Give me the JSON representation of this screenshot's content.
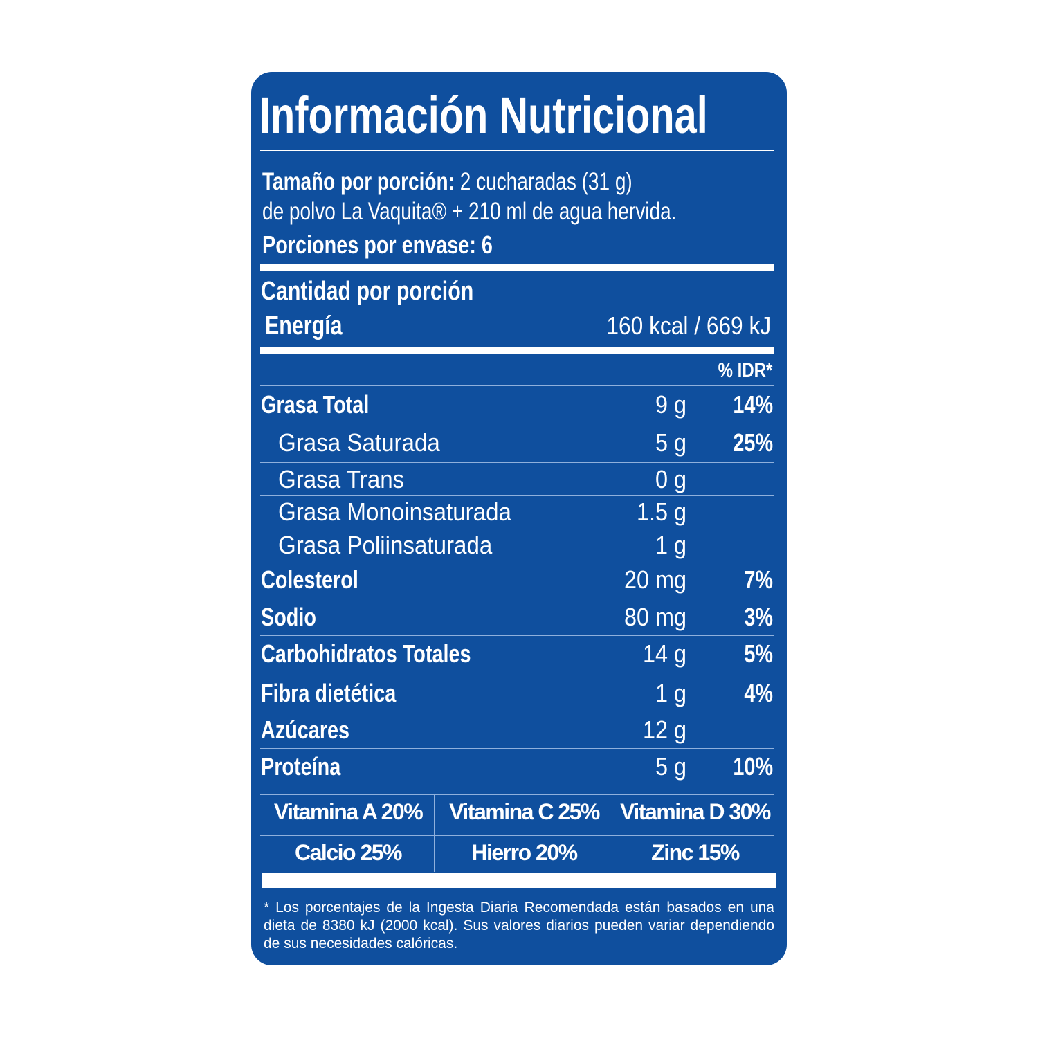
{
  "title": "Información Nutricional",
  "serving": {
    "size_label": "Tamaño por porción:",
    "size_value": "2 cucharadas (31 g)",
    "size_line2": "de polvo La Vaquita® + 210 ml de agua hervida.",
    "servings_per_container": "Porciones por envase: 6"
  },
  "amount_per_serving": "Cantidad por porción",
  "energy": {
    "label": "Energía",
    "value": "160 kcal / 669 kJ"
  },
  "idr_header": "% IDR*",
  "nutrients": [
    {
      "label": "Grasa Total",
      "amount": "9 g",
      "pct": "14%"
    },
    {
      "label": "Grasa Saturada",
      "amount": "5 g",
      "pct": "25%"
    },
    {
      "label": "Grasa Trans",
      "amount": "0 g",
      "pct": ""
    },
    {
      "label": "Grasa Monoinsaturada",
      "amount": "1.5 g",
      "pct": ""
    },
    {
      "label": "Grasa Poliinsaturada",
      "amount": "1 g",
      "pct": ""
    },
    {
      "label": "Colesterol",
      "amount": "20 mg",
      "pct": "7%"
    },
    {
      "label": "Sodio",
      "amount": "80 mg",
      "pct": "3%"
    },
    {
      "label": "Carbohidratos Totales",
      "amount": "14 g",
      "pct": "5%"
    },
    {
      "label": "Fibra dietética",
      "amount": "1 g",
      "pct": "4%"
    },
    {
      "label": "Azúcares",
      "amount": "12 g",
      "pct": ""
    },
    {
      "label": "Proteína",
      "amount": "5 g",
      "pct": "10%"
    }
  ],
  "vitamins": [
    [
      "Vitamina A 20%",
      "Vitamina C 25%",
      "Vitamina D 30%"
    ],
    [
      "Calcio 25%",
      "Hierro 20%",
      "Zinc 15%"
    ]
  ],
  "footnote": "*  Los porcentajes de la Ingesta Diaria Recomendada están basados en una dieta de 8380 kJ (2000 kcal). Sus valores diarios pueden variar dependiendo de sus necesidades calóricas.",
  "colors": {
    "background": "#0f4f9e",
    "text": "#ffffff"
  }
}
